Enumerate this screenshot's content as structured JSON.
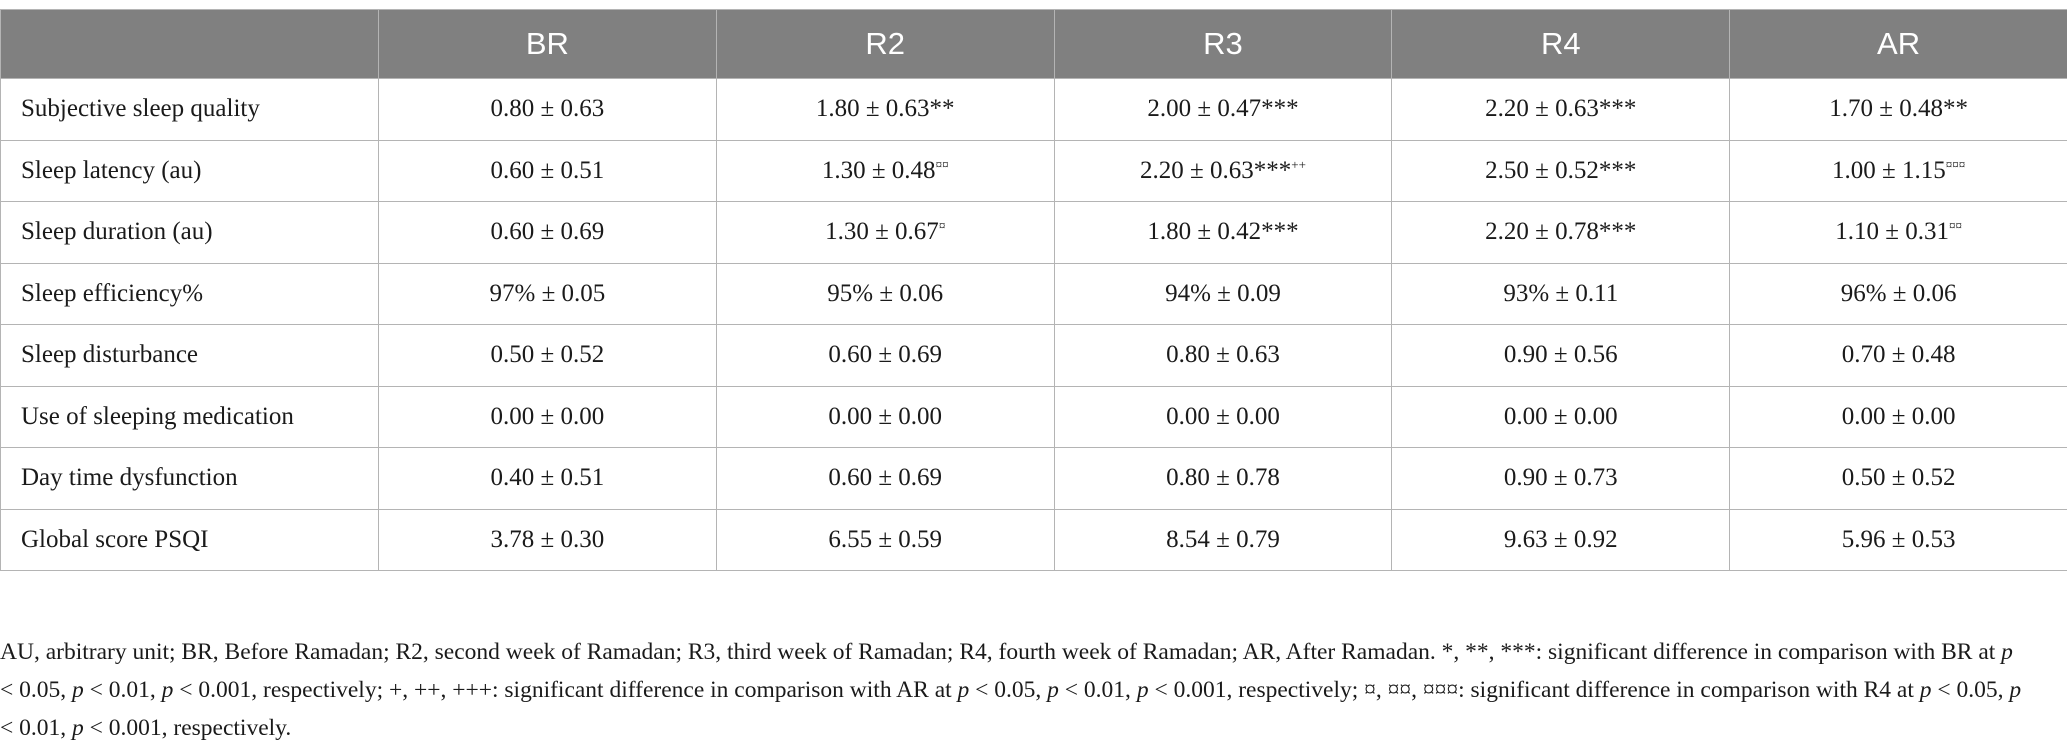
{
  "table": {
    "columns": [
      "",
      "BR",
      "R2",
      "R3",
      "R4",
      "AR"
    ],
    "rows": [
      {
        "label": "Subjective sleep quality",
        "cells": [
          {
            "value": "0.80 ± 0.63",
            "sup": ""
          },
          {
            "value": "1.80 ± 0.63**",
            "sup": ""
          },
          {
            "value": "2.00 ± 0.47***",
            "sup": ""
          },
          {
            "value": "2.20 ± 0.63***",
            "sup": ""
          },
          {
            "value": "1.70 ± 0.48**",
            "sup": ""
          }
        ]
      },
      {
        "label": "Sleep latency (au)",
        "cells": [
          {
            "value": "0.60 ± 0.51",
            "sup": ""
          },
          {
            "value": "1.30 ± 0.48",
            "sup": "¤¤"
          },
          {
            "value": "2.20 ± 0.63***",
            "sup": "++"
          },
          {
            "value": "2.50 ± 0.52***",
            "sup": ""
          },
          {
            "value": "1.00 ± 1.15",
            "sup": "¤¤¤"
          }
        ]
      },
      {
        "label": "Sleep duration (au)",
        "cells": [
          {
            "value": "0.60 ± 0.69",
            "sup": ""
          },
          {
            "value": "1.30 ± 0.67",
            "sup": "¤"
          },
          {
            "value": "1.80 ± 0.42***",
            "sup": ""
          },
          {
            "value": "2.20 ± 0.78***",
            "sup": ""
          },
          {
            "value": "1.10 ± 0.31",
            "sup": "¤¤"
          }
        ]
      },
      {
        "label": "Sleep efficiency%",
        "cells": [
          {
            "value": "97% ± 0.05",
            "sup": ""
          },
          {
            "value": "95% ± 0.06",
            "sup": ""
          },
          {
            "value": "94% ± 0.09",
            "sup": ""
          },
          {
            "value": "93% ± 0.11",
            "sup": ""
          },
          {
            "value": "96% ± 0.06",
            "sup": ""
          }
        ]
      },
      {
        "label": "Sleep disturbance",
        "cells": [
          {
            "value": "0.50 ± 0.52",
            "sup": ""
          },
          {
            "value": "0.60 ± 0.69",
            "sup": ""
          },
          {
            "value": "0.80 ± 0.63",
            "sup": ""
          },
          {
            "value": "0.90 ± 0.56",
            "sup": ""
          },
          {
            "value": "0.70 ± 0.48",
            "sup": ""
          }
        ]
      },
      {
        "label": "Use of sleeping medication",
        "cells": [
          {
            "value": "0.00 ± 0.00",
            "sup": ""
          },
          {
            "value": "0.00 ± 0.00",
            "sup": ""
          },
          {
            "value": "0.00 ± 0.00",
            "sup": ""
          },
          {
            "value": "0.00 ± 0.00",
            "sup": ""
          },
          {
            "value": "0.00 ± 0.00",
            "sup": ""
          }
        ]
      },
      {
        "label": "Day time dysfunction",
        "cells": [
          {
            "value": "0.40 ± 0.51",
            "sup": ""
          },
          {
            "value": "0.60 ± 0.69",
            "sup": ""
          },
          {
            "value": "0.80 ± 0.78",
            "sup": ""
          },
          {
            "value": "0.90 ± 0.73",
            "sup": ""
          },
          {
            "value": "0.50 ± 0.52",
            "sup": ""
          }
        ]
      },
      {
        "label": "Global score PSQI",
        "cells": [
          {
            "value": "3.78 ± 0.30",
            "sup": ""
          },
          {
            "value": "6.55 ± 0.59",
            "sup": ""
          },
          {
            "value": "8.54 ± 0.79",
            "sup": ""
          },
          {
            "value": "9.63 ± 0.92",
            "sup": ""
          },
          {
            "value": "5.96 ± 0.53",
            "sup": ""
          }
        ]
      }
    ]
  },
  "footnote": {
    "s1": "AU, arbitrary unit; BR, Before Ramadan; R2, second week of Ramadan; R3, third week of Ramadan; R4, fourth week of Ramadan; AR, After Ramadan. *, **, ***: significant difference in comparison with BR at ",
    "p1": "p",
    "s2": " < 0.05, ",
    "p2": "p",
    "s3": " < 0.01, ",
    "p3": "p",
    "s4": " < 0.001, respectively; +, ++, +++: significant difference in comparison with AR at ",
    "p4": "p",
    "s5": " < 0.05, ",
    "p5": "p",
    "s6": " < 0.01, ",
    "p6": "p",
    "s7": " < 0.001, respectively; ¤, ¤¤, ¤¤¤: significant difference in comparison with R4 at ",
    "p7": "p",
    "s8": " < 0.05, ",
    "p8": "p",
    "s9": " < 0.01, ",
    "p9": "p",
    "s10": " < 0.001, respectively."
  },
  "colors": {
    "header_bg": "#808080",
    "header_text": "#ffffff",
    "grid": "#b4b4b4"
  }
}
